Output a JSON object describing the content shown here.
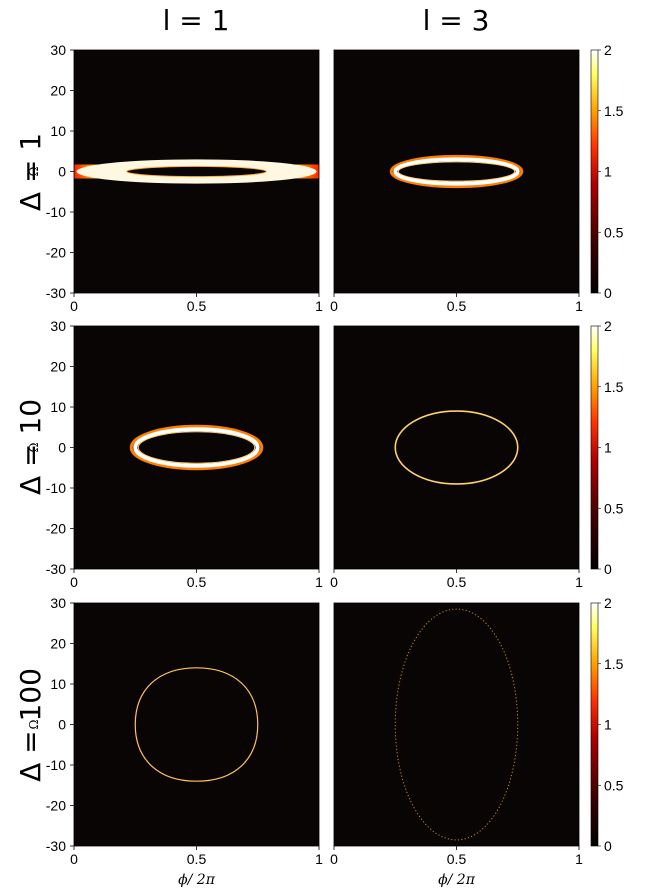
{
  "column_titles": [
    "l = 1",
    "l = 3"
  ],
  "row_titles": [
    "Δ = 1",
    "Δ = 10",
    "Δ = 100"
  ],
  "colors": {
    "panel_background": "#0a0505",
    "colormap": [
      "#000000",
      "#3a0000",
      "#b00000",
      "#ff3000",
      "#ffa000",
      "#ffff60",
      "#ffffff"
    ]
  },
  "chart_data": [
    {
      "type": "heatmap",
      "row": 0,
      "col": 0,
      "ylabel": "Ω",
      "xlabel": "",
      "xlim": [
        0,
        1
      ],
      "ylim": [
        -30,
        30
      ],
      "x_ticks": [
        "0",
        "0.5",
        "1"
      ],
      "y_ticks": [
        "30",
        "20",
        "10",
        "0",
        "-10",
        "-20",
        "-30"
      ],
      "feature": {
        "shape": "ellipse",
        "cx": 0.5,
        "cy": 0,
        "rx": 0.5,
        "ry": 1.5,
        "thickness": "thick",
        "extends_to_edges": true
      }
    },
    {
      "type": "heatmap",
      "row": 0,
      "col": 1,
      "ylabel": "",
      "xlabel": "",
      "xlim": [
        0,
        1
      ],
      "ylim": [
        -30,
        30
      ],
      "x_ticks": [
        "0",
        "0.5",
        "1"
      ],
      "y_ticks": [],
      "colorbar": {
        "range": [
          0,
          2
        ],
        "ticks": [
          "2",
          "1.5",
          "1",
          "0.5",
          "0"
        ]
      },
      "feature": {
        "shape": "ellipse",
        "cx": 0.5,
        "cy": 0,
        "rx": 0.25,
        "ry": 3,
        "thickness": "medium"
      }
    },
    {
      "type": "heatmap",
      "row": 1,
      "col": 0,
      "ylabel": "Ω",
      "xlabel": "",
      "xlim": [
        0,
        1
      ],
      "ylim": [
        -30,
        30
      ],
      "x_ticks": [
        "0",
        "0.5",
        "1"
      ],
      "y_ticks": [
        "30",
        "20",
        "10",
        "0",
        "-10",
        "-20",
        "-30"
      ],
      "feature": {
        "shape": "ellipse",
        "cx": 0.5,
        "cy": 0,
        "rx": 0.25,
        "ry": 4.5,
        "thickness": "medium"
      }
    },
    {
      "type": "heatmap",
      "row": 1,
      "col": 1,
      "ylabel": "",
      "xlabel": "",
      "xlim": [
        0,
        1
      ],
      "ylim": [
        -30,
        30
      ],
      "x_ticks": [
        "0",
        "0.5",
        "1"
      ],
      "y_ticks": [],
      "colorbar": {
        "range": [
          0,
          2
        ],
        "ticks": [
          "2",
          "1.5",
          "1",
          "0.5",
          "0"
        ]
      },
      "feature": {
        "shape": "ellipse",
        "cx": 0.5,
        "cy": 0,
        "rx": 0.25,
        "ry": 9,
        "thickness": "thin"
      }
    },
    {
      "type": "heatmap",
      "row": 2,
      "col": 0,
      "ylabel": "Ω",
      "xlabel": "ϕ/ 2π",
      "xlim": [
        0,
        1
      ],
      "ylim": [
        -30,
        30
      ],
      "x_ticks": [
        "0",
        "0.5",
        "1"
      ],
      "y_ticks": [
        "30",
        "20",
        "10",
        "0",
        "-10",
        "-20",
        "-30"
      ],
      "feature": {
        "shape": "rounded",
        "cx": 0.5,
        "cy": 0,
        "rx": 0.25,
        "ry": 14,
        "thickness": "thin"
      }
    },
    {
      "type": "heatmap",
      "row": 2,
      "col": 1,
      "ylabel": "",
      "xlabel": "ϕ/ 2π",
      "xlim": [
        0,
        1
      ],
      "ylim": [
        -30,
        30
      ],
      "x_ticks": [
        "0",
        "0.5",
        "1"
      ],
      "y_ticks": [],
      "colorbar": {
        "range": [
          0,
          2
        ],
        "ticks": [
          "2",
          "1.5",
          "1",
          "0.5",
          "0"
        ]
      },
      "feature": {
        "shape": "ellipse",
        "cx": 0.5,
        "cy": 0,
        "rx": 0.25,
        "ry": 28.5,
        "thickness": "dotted"
      }
    }
  ]
}
